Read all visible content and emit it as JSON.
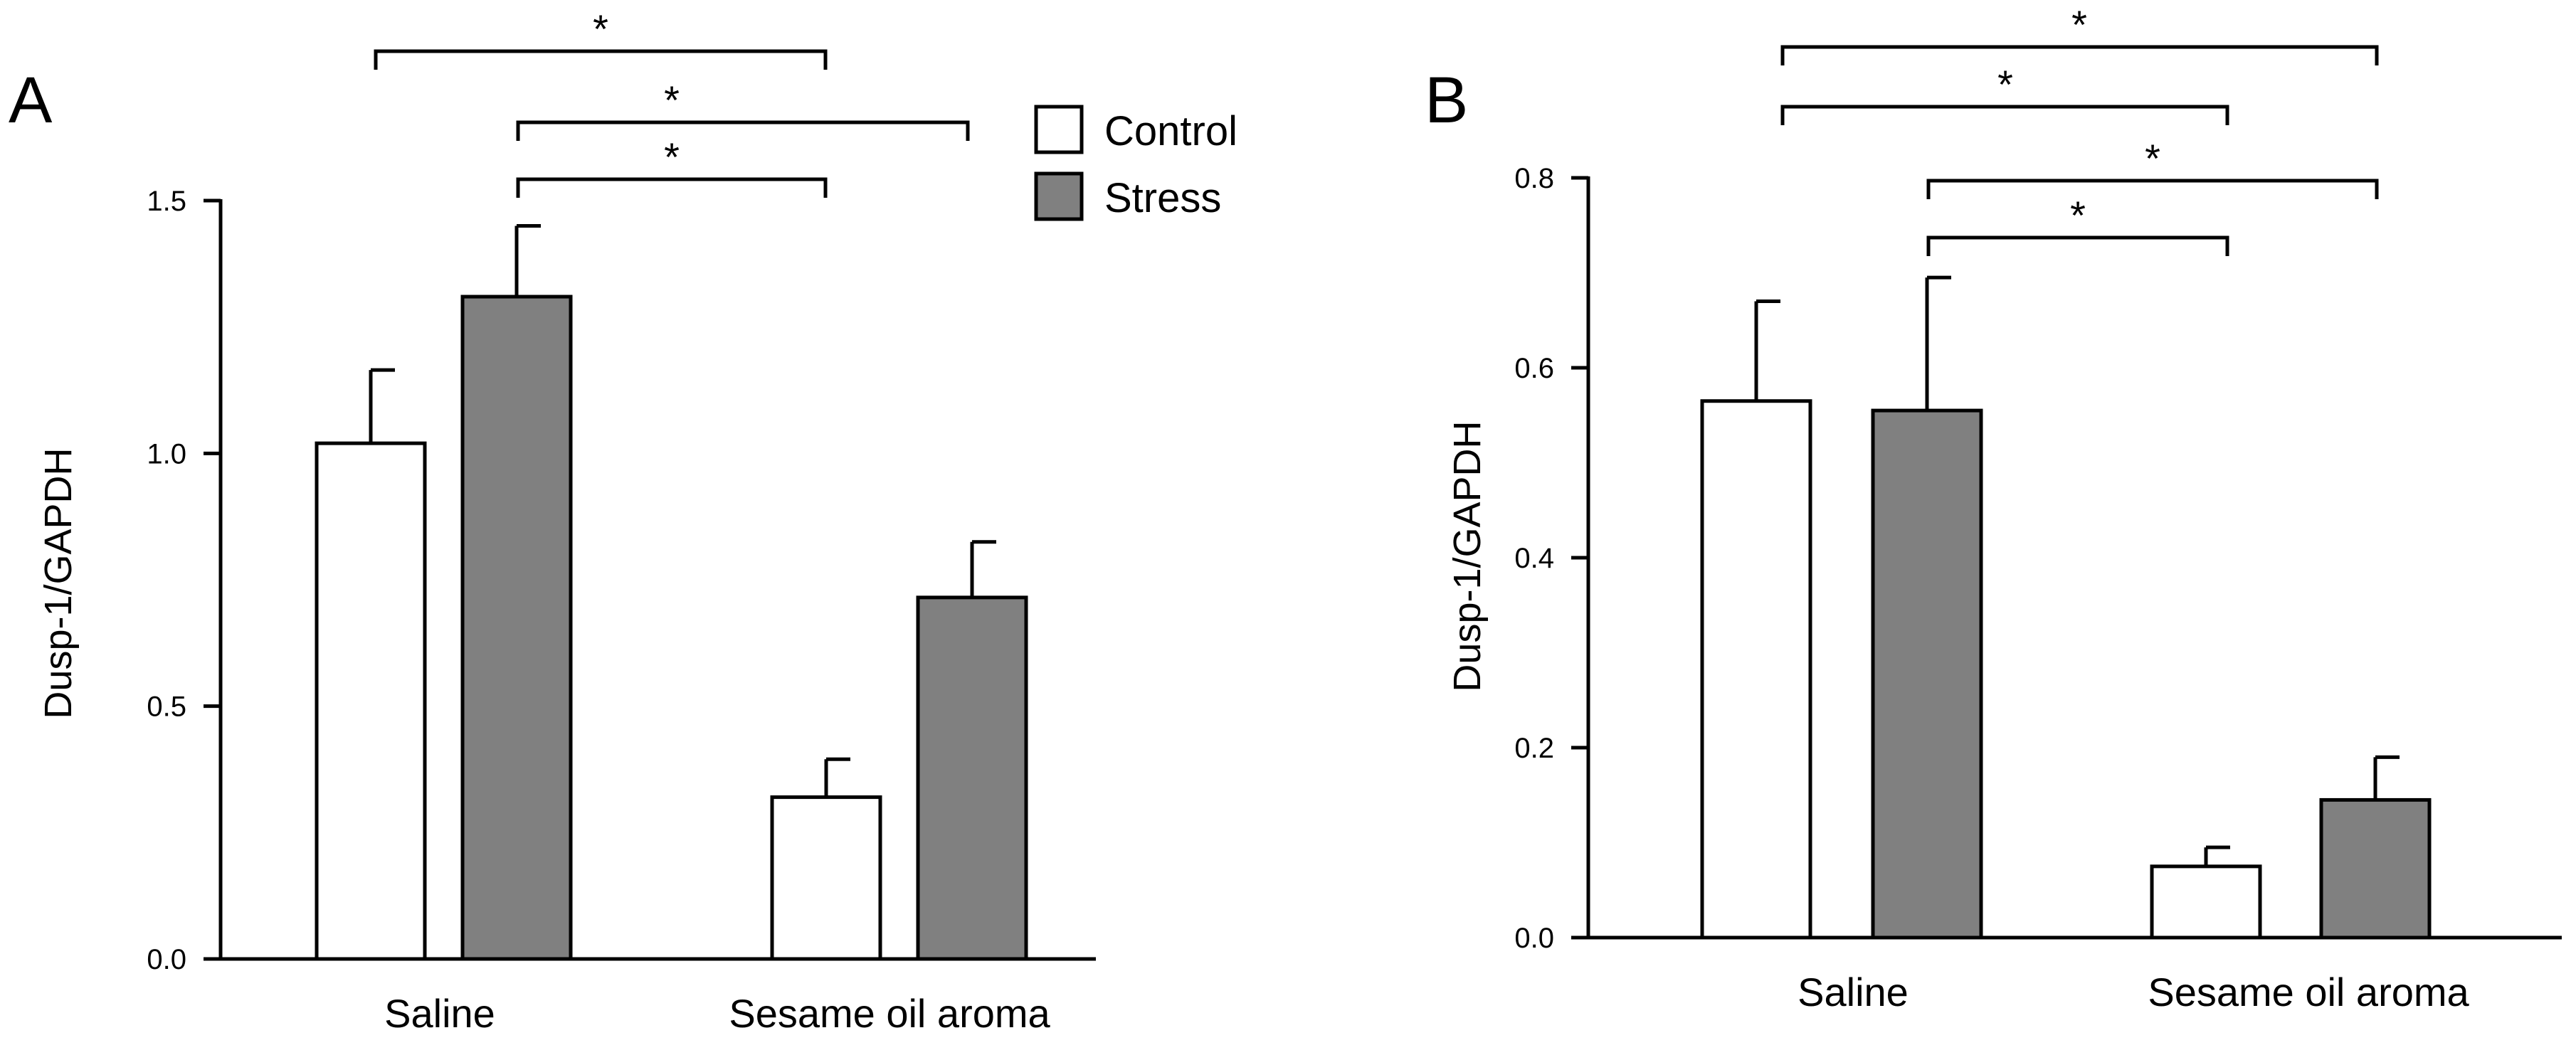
{
  "chart_data": [
    {
      "panel": "A",
      "type": "bar",
      "categories": [
        "Saline",
        "Sesame oil aroma"
      ],
      "series": [
        {
          "name": "Control",
          "color": "#ffffff",
          "values": [
            1.02,
            0.32
          ],
          "errors": [
            0.145,
            0.075
          ]
        },
        {
          "name": "Stress",
          "color": "#808080",
          "values": [
            1.31,
            0.715
          ],
          "errors": [
            0.14,
            0.11
          ]
        }
      ],
      "ylabel": "Dusp-1/GAPDH",
      "ylim": [
        0,
        1.5
      ],
      "yticks": [
        "0.0",
        "0.5",
        "1.0",
        "1.5"
      ],
      "significance": [
        {
          "from": "Saline Control",
          "to": "Sesame oil aroma Control",
          "label": "*"
        },
        {
          "from": "Saline Stress",
          "to": "Sesame oil aroma Stress",
          "label": "*"
        },
        {
          "from": "Saline Stress",
          "to": "Sesame oil aroma Control",
          "label": "*"
        }
      ]
    },
    {
      "panel": "B",
      "type": "bar",
      "categories": [
        "Saline",
        "Sesame oil aroma"
      ],
      "series": [
        {
          "name": "Control",
          "color": "#ffffff",
          "values": [
            0.565,
            0.075
          ],
          "errors": [
            0.105,
            0.02
          ]
        },
        {
          "name": "Stress",
          "color": "#808080",
          "values": [
            0.555,
            0.145
          ],
          "errors": [
            0.14,
            0.045
          ]
        }
      ],
      "ylabel": "Dusp-1/GAPDH",
      "ylim": [
        0,
        0.8
      ],
      "yticks": [
        "0.0",
        "0.2",
        "0.4",
        "0.6",
        "0.8"
      ],
      "significance": [
        {
          "from": "Saline Control",
          "to": "Sesame oil aroma Stress",
          "label": "*"
        },
        {
          "from": "Saline Control",
          "to": "Sesame oil aroma Control",
          "label": "*"
        },
        {
          "from": "Saline Stress",
          "to": "Sesame oil aroma Stress",
          "label": "*"
        },
        {
          "from": "Saline Stress",
          "to": "Sesame oil aroma Control",
          "label": "*"
        }
      ]
    }
  ],
  "legend": {
    "items": [
      {
        "label": "Control",
        "color": "#ffffff"
      },
      {
        "label": "Stress",
        "color": "#808080"
      }
    ]
  }
}
